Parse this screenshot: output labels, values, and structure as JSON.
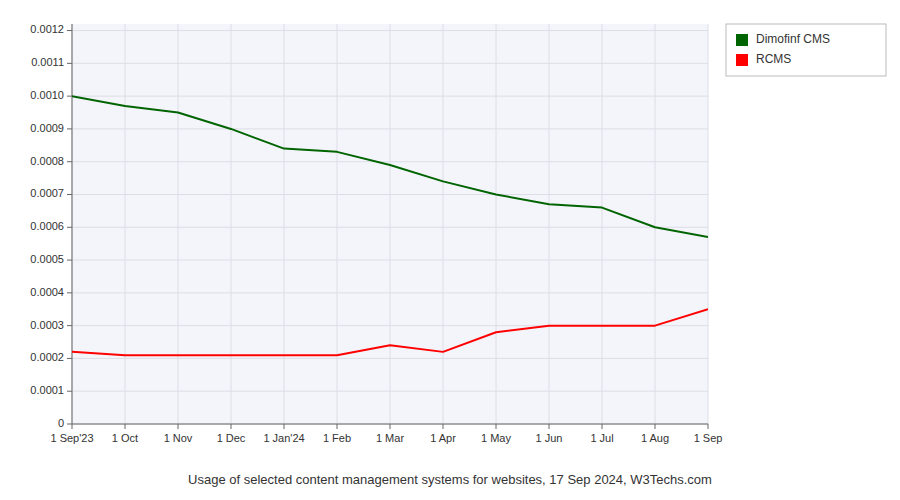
{
  "chart_data": {
    "type": "line",
    "title": "Usage of selected content management systems for websites, 17 Sep 2024, W3Techs.com",
    "categories": [
      "1 Sep'23",
      "1 Oct",
      "1 Nov",
      "1 Dec",
      "1 Jan'24",
      "1 Feb",
      "1 Mar",
      "1 Apr",
      "1 May",
      "1 Jun",
      "1 Jul",
      "1 Aug",
      "1 Sep"
    ],
    "series": [
      {
        "name": "Dimofinf CMS",
        "color": "#006400",
        "values": [
          0.001,
          0.00097,
          0.00095,
          0.0009,
          0.00084,
          0.00083,
          0.00079,
          0.00074,
          0.0007,
          0.00067,
          0.00066,
          0.0006,
          0.00057
        ]
      },
      {
        "name": "RCMS",
        "color": "#ff0000",
        "values": [
          0.00022,
          0.00021,
          0.00021,
          0.00021,
          0.00021,
          0.00021,
          0.00024,
          0.00022,
          0.00028,
          0.0003,
          0.0003,
          0.0003,
          0.00035
        ]
      }
    ],
    "ylim": [
      0,
      0.00122
    ],
    "yticks": [
      0,
      0.0001,
      0.0002,
      0.0003,
      0.0004,
      0.0005,
      0.0006,
      0.0007,
      0.0008,
      0.0009,
      {
        "value": 0.001,
        "label": "0.0010"
      },
      0.0011,
      0.0012
    ],
    "grid": true,
    "legend": "right"
  }
}
